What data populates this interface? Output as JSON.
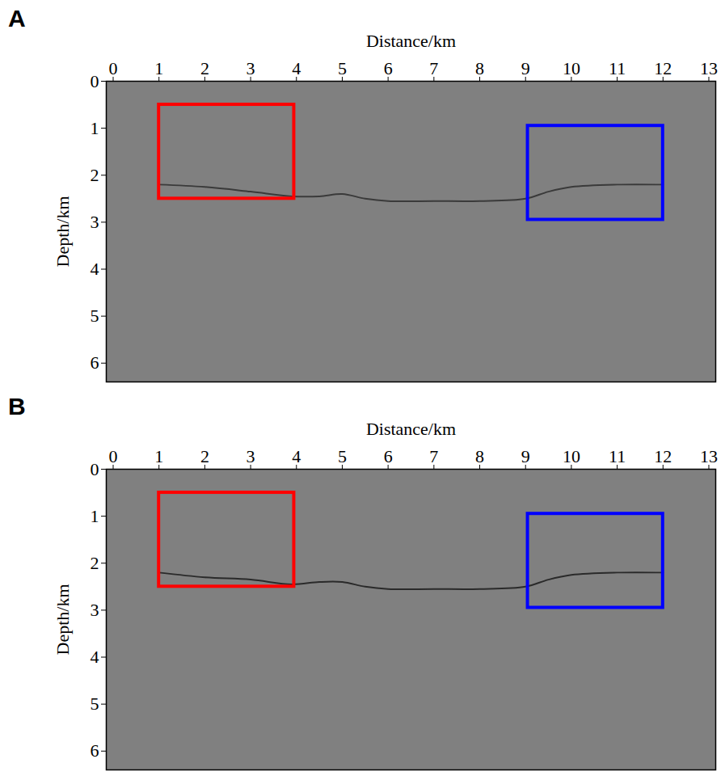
{
  "chart_data": [
    {
      "type": "image",
      "panel": "A",
      "color": "#808080",
      "x_label": "Distance/km",
      "y_label": "Depth/km",
      "xlim": [
        -0.15,
        13.15
      ],
      "ylim": [
        0,
        6.4
      ],
      "xticks": [
        0,
        1,
        2,
        3,
        4,
        5,
        6,
        7,
        8,
        9,
        10,
        11,
        12,
        13
      ],
      "yticks": [
        0,
        1,
        2,
        3,
        4,
        5,
        6
      ],
      "boxes": [
        {
          "x": [
            1,
            3.95
          ],
          "y": [
            0.5,
            2.5
          ],
          "color": "#ff0000"
        },
        {
          "x": [
            9.05,
            12
          ],
          "y": [
            0.95,
            2.95
          ],
          "color": "#0000ff"
        }
      ],
      "reflector": {
        "color": "#3a3a3a",
        "x": [
          1,
          2,
          3,
          3.9,
          4.5,
          5,
          5.5,
          6,
          7,
          8,
          9,
          9.5,
          10,
          11,
          12
        ],
        "y": [
          2.2,
          2.25,
          2.35,
          2.45,
          2.45,
          2.4,
          2.5,
          2.55,
          2.55,
          2.55,
          2.5,
          2.35,
          2.25,
          2.2,
          2.2
        ]
      }
    },
    {
      "type": "image",
      "panel": "B",
      "color": "#808080",
      "x_label": "Distance/km",
      "y_label": "Depth/km",
      "xlim": [
        -0.15,
        13.15
      ],
      "ylim": [
        0,
        6.4
      ],
      "xticks": [
        0,
        1,
        2,
        3,
        4,
        5,
        6,
        7,
        8,
        9,
        10,
        11,
        12,
        13
      ],
      "yticks": [
        0,
        1,
        2,
        3,
        4,
        5,
        6
      ],
      "boxes": [
        {
          "x": [
            1,
            3.95
          ],
          "y": [
            0.5,
            2.5
          ],
          "color": "#ff0000"
        },
        {
          "x": [
            9.05,
            12
          ],
          "y": [
            0.95,
            2.95
          ],
          "color": "#0000ff"
        }
      ],
      "reflector": {
        "color": "#2a2a2a",
        "x": [
          1,
          2,
          3,
          3.9,
          4.5,
          5,
          5.5,
          6,
          7,
          8,
          9,
          9.5,
          10,
          11,
          12
        ],
        "y": [
          2.2,
          2.3,
          2.35,
          2.45,
          2.4,
          2.4,
          2.5,
          2.55,
          2.55,
          2.55,
          2.5,
          2.35,
          2.25,
          2.2,
          2.2
        ]
      }
    }
  ]
}
